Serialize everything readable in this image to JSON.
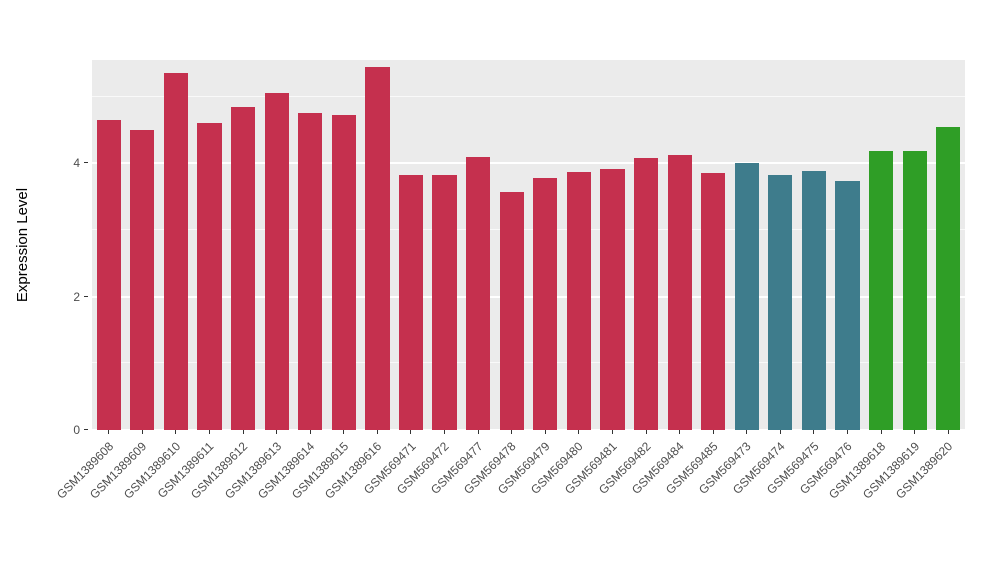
{
  "chart_data": {
    "type": "bar",
    "title": "",
    "xlabel": "",
    "ylabel": "Expression Level",
    "ylim": [
      0,
      5.55
    ],
    "yticks_major": [
      0,
      2,
      4
    ],
    "yticks_minor": [
      1,
      3,
      5
    ],
    "grid": true,
    "legend_position": "none",
    "panel_background": "#ebebeb",
    "gridline_color": "#ffffff",
    "axis_text_color": "#4d4d4d",
    "categories": [
      "GSM1389608",
      "GSM1389609",
      "GSM1389610",
      "GSM1389611",
      "GSM1389612",
      "GSM1389613",
      "GSM1389614",
      "GSM1389615",
      "GSM1389616",
      "GSM569471",
      "GSM569472",
      "GSM569477",
      "GSM569478",
      "GSM569479",
      "GSM569480",
      "GSM569481",
      "GSM569482",
      "GSM569484",
      "GSM569485",
      "GSM569473",
      "GSM569474",
      "GSM569475",
      "GSM569476",
      "GSM1389618",
      "GSM1389619",
      "GSM1389620"
    ],
    "values": [
      4.65,
      4.5,
      5.35,
      4.6,
      4.85,
      5.05,
      4.75,
      4.73,
      5.45,
      3.82,
      3.82,
      4.1,
      3.57,
      3.78,
      3.87,
      3.92,
      4.08,
      4.12,
      3.85,
      4.01,
      3.82,
      3.88,
      3.73,
      4.18,
      4.18,
      4.55
    ],
    "groups": [
      "red",
      "red",
      "red",
      "red",
      "red",
      "red",
      "red",
      "red",
      "red",
      "red",
      "red",
      "red",
      "red",
      "red",
      "red",
      "red",
      "red",
      "red",
      "red",
      "teal",
      "teal",
      "teal",
      "teal",
      "green",
      "green",
      "green"
    ],
    "palette": {
      "red": "#c5304e",
      "teal": "#3e7c8c",
      "green": "#2f9e26"
    }
  }
}
